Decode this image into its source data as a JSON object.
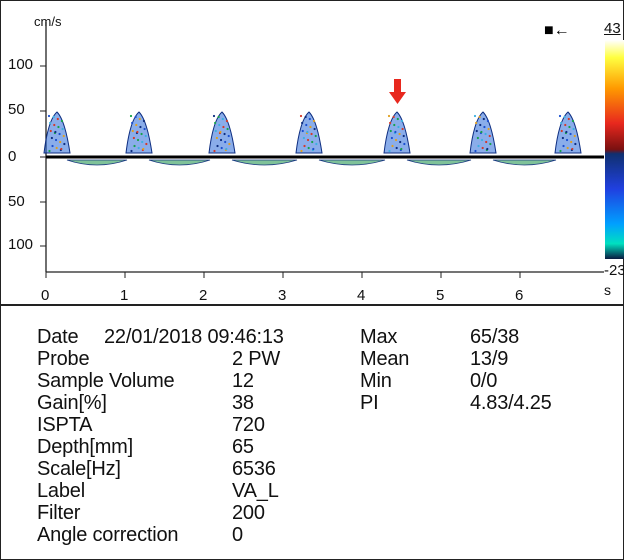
{
  "spectrum": {
    "velocity_unit": "cm/s",
    "time_unit": "s",
    "y_ticks": [
      "100",
      "50",
      "0",
      "50",
      "100"
    ],
    "x_ticks": [
      "0",
      "1",
      "2",
      "3",
      "4",
      "5",
      "6"
    ],
    "colorbar_max": "43",
    "colorbar_min": "-23",
    "direction_marker": "■←",
    "marker_color": "#e8281e"
  },
  "params_left": [
    {
      "label": "Date",
      "value": "22/01/2018 09:46:13"
    },
    {
      "label": "Probe",
      "value": "2 PW"
    },
    {
      "label": "Sample Volume",
      "value": "12"
    },
    {
      "label": "Gain[%]",
      "value": "38"
    },
    {
      "label": "ISPTA",
      "value": "720"
    },
    {
      "label": "Depth[mm]",
      "value": "65"
    },
    {
      "label": "Scale[Hz]",
      "value": "6536"
    },
    {
      "label": "Label",
      "value": "VA_L"
    },
    {
      "label": "Filter",
      "value": "200"
    },
    {
      "label": "Angle correction",
      "value": "0"
    }
  ],
  "params_right": [
    {
      "label": "Max",
      "value": "65/38"
    },
    {
      "label": "Mean",
      "value": "13/9"
    },
    {
      "label": "Min",
      "value": "0/0"
    },
    {
      "label": "PI",
      "value": "4.83/4.25"
    }
  ]
}
